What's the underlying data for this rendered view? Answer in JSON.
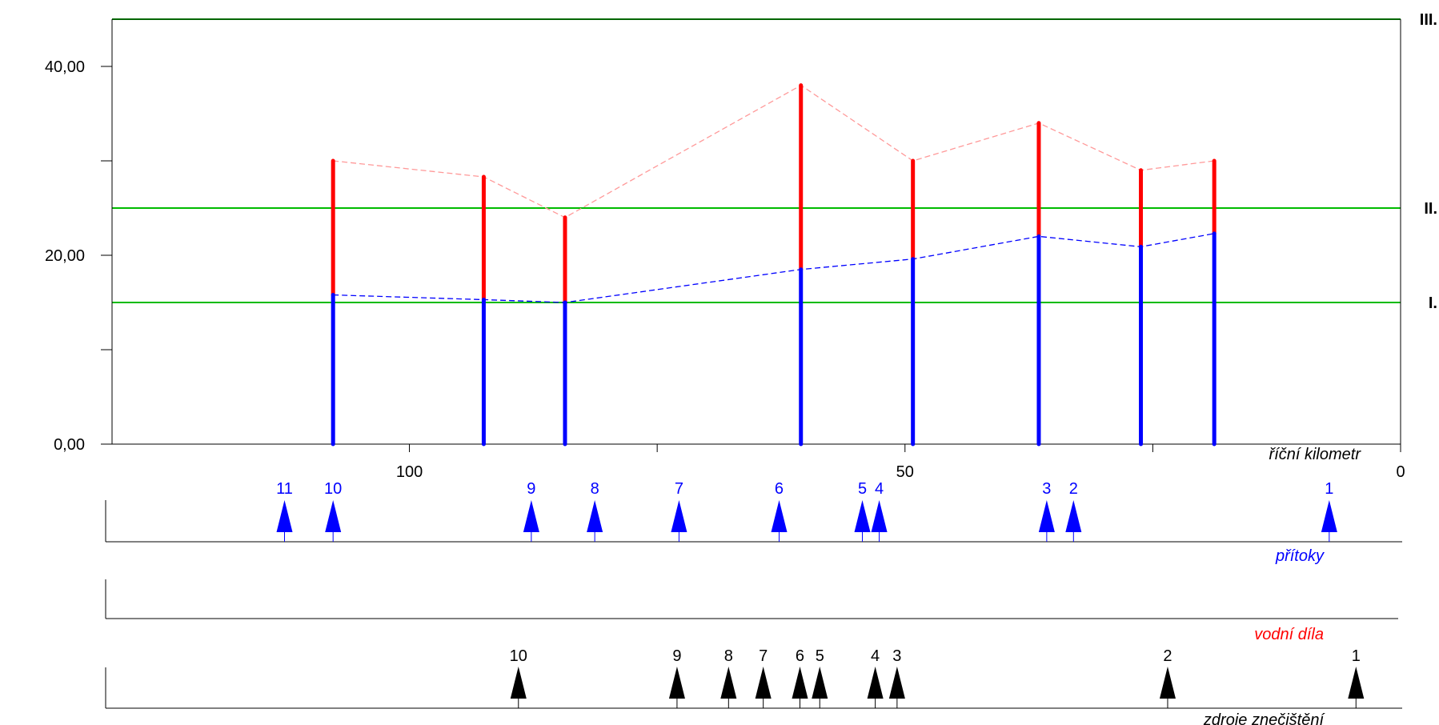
{
  "chart_data": {
    "type": "bar",
    "x_axis": {
      "label": "říční kilometr",
      "range": [
        130,
        0
      ],
      "reversed": true,
      "ticks": [
        {
          "value": 100,
          "label": "100"
        },
        {
          "value": 50,
          "label": "50"
        },
        {
          "value": 0,
          "label": "0"
        }
      ],
      "minor_ticks": [
        75,
        25
      ]
    },
    "y_axis": {
      "label": "",
      "range": [
        0,
        45
      ],
      "ticks": [
        {
          "value": 0,
          "label": "0,00"
        },
        {
          "value": 20,
          "label": "20,00"
        },
        {
          "value": 40,
          "label": "40,00"
        }
      ],
      "minor_ticks": [
        10,
        30
      ]
    },
    "class_limits": [
      {
        "label": "I.",
        "value": 15
      },
      {
        "label": "II.",
        "value": 25
      },
      {
        "label": "III.",
        "value": 45
      }
    ],
    "series": [
      {
        "points": [
          {
            "km": 107.7,
            "lower": 15.8,
            "upper": 30.0
          },
          {
            "km": 92.5,
            "lower": 15.3,
            "upper": 28.3
          },
          {
            "km": 84.3,
            "lower": 15.0,
            "upper": 24.0
          },
          {
            "km": 60.5,
            "lower": 18.5,
            "upper": 38.0
          },
          {
            "km": 49.2,
            "lower": 19.6,
            "upper": 30.0
          },
          {
            "km": 36.5,
            "lower": 22.0,
            "upper": 34.0
          },
          {
            "km": 26.2,
            "lower": 20.9,
            "upper": 29.0
          },
          {
            "km": 18.8,
            "lower": 22.3,
            "upper": 30.0
          }
        ]
      }
    ],
    "colors": {
      "lower_bar": "#0000ff",
      "upper_bar": "#ff0000",
      "lower_line": "#0000ff",
      "upper_line": "#ff9999",
      "class_III": "#006600",
      "class_I_II": "#00bb00",
      "tributary_marker": "#0000ff",
      "pollution_marker": "#000000"
    },
    "tracks": {
      "tributaries": {
        "label": "přítoky",
        "color": "#0000ff",
        "markers": [
          {
            "num": "11",
            "km": 112.6
          },
          {
            "num": "10",
            "km": 107.7
          },
          {
            "num": "9",
            "km": 87.7
          },
          {
            "num": "8",
            "km": 81.3
          },
          {
            "num": "7",
            "km": 72.8
          },
          {
            "num": "6",
            "km": 62.7
          },
          {
            "num": "5",
            "km": 54.3
          },
          {
            "num": "4",
            "km": 52.6
          },
          {
            "num": "3",
            "km": 35.7
          },
          {
            "num": "2",
            "km": 33.0
          },
          {
            "num": "1",
            "km": 7.2
          }
        ]
      },
      "water_works": {
        "label": "vodní díla",
        "color": "#ff0000",
        "markers": []
      },
      "pollution_sources": {
        "label": "zdroje znečištění",
        "color": "#000000",
        "markers": [
          {
            "num": "10",
            "km": 89.0
          },
          {
            "num": "9",
            "km": 73.0
          },
          {
            "num": "8",
            "km": 67.8
          },
          {
            "num": "7",
            "km": 64.3
          },
          {
            "num": "6",
            "km": 60.6
          },
          {
            "num": "5",
            "km": 58.6
          },
          {
            "num": "4",
            "km": 53.0
          },
          {
            "num": "3",
            "km": 50.8
          },
          {
            "num": "2",
            "km": 23.5
          },
          {
            "num": "1",
            "km": 4.5
          }
        ]
      }
    }
  }
}
